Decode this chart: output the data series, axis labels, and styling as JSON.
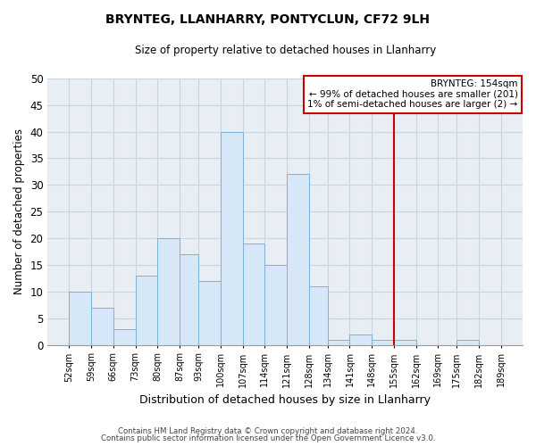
{
  "title": "BRYNTEG, LLANHARRY, PONTYCLUN, CF72 9LH",
  "subtitle": "Size of property relative to detached houses in Llanharry",
  "xlabel": "Distribution of detached houses by size in Llanharry",
  "ylabel": "Number of detached properties",
  "bin_edges": [
    52,
    59,
    66,
    73,
    80,
    87,
    93,
    100,
    107,
    114,
    121,
    128,
    134,
    141,
    148,
    155,
    162,
    169,
    175,
    182,
    189
  ],
  "counts": [
    10,
    7,
    3,
    13,
    20,
    17,
    12,
    40,
    19,
    15,
    32,
    11,
    1,
    2,
    1,
    1,
    0,
    0,
    1,
    0
  ],
  "bar_facecolor": "#d6e8f7",
  "bar_edgecolor": "#7ab3d9",
  "grid_color": "#c8d4e0",
  "vline_x": 155,
  "vline_color": "#cc0000",
  "ylim": [
    0,
    50
  ],
  "yticks": [
    0,
    5,
    10,
    15,
    20,
    25,
    30,
    35,
    40,
    45,
    50
  ],
  "x_tick_labels": [
    "52sqm",
    "59sqm",
    "66sqm",
    "73sqm",
    "80sqm",
    "87sqm",
    "93sqm",
    "100sqm",
    "107sqm",
    "114sqm",
    "121sqm",
    "128sqm",
    "134sqm",
    "141sqm",
    "148sqm",
    "155sqm",
    "162sqm",
    "169sqm",
    "175sqm",
    "182sqm",
    "189sqm"
  ],
  "annotation_title": "BRYNTEG: 154sqm",
  "annotation_line1": "← 99% of detached houses are smaller (201)",
  "annotation_line2": "1% of semi-detached houses are larger (2) →",
  "footer1": "Contains HM Land Registry data © Crown copyright and database right 2024.",
  "footer2": "Contains public sector information licensed under the Open Government Licence v3.0.",
  "background_color": "#ffffff",
  "plot_background": "#e8eef4"
}
